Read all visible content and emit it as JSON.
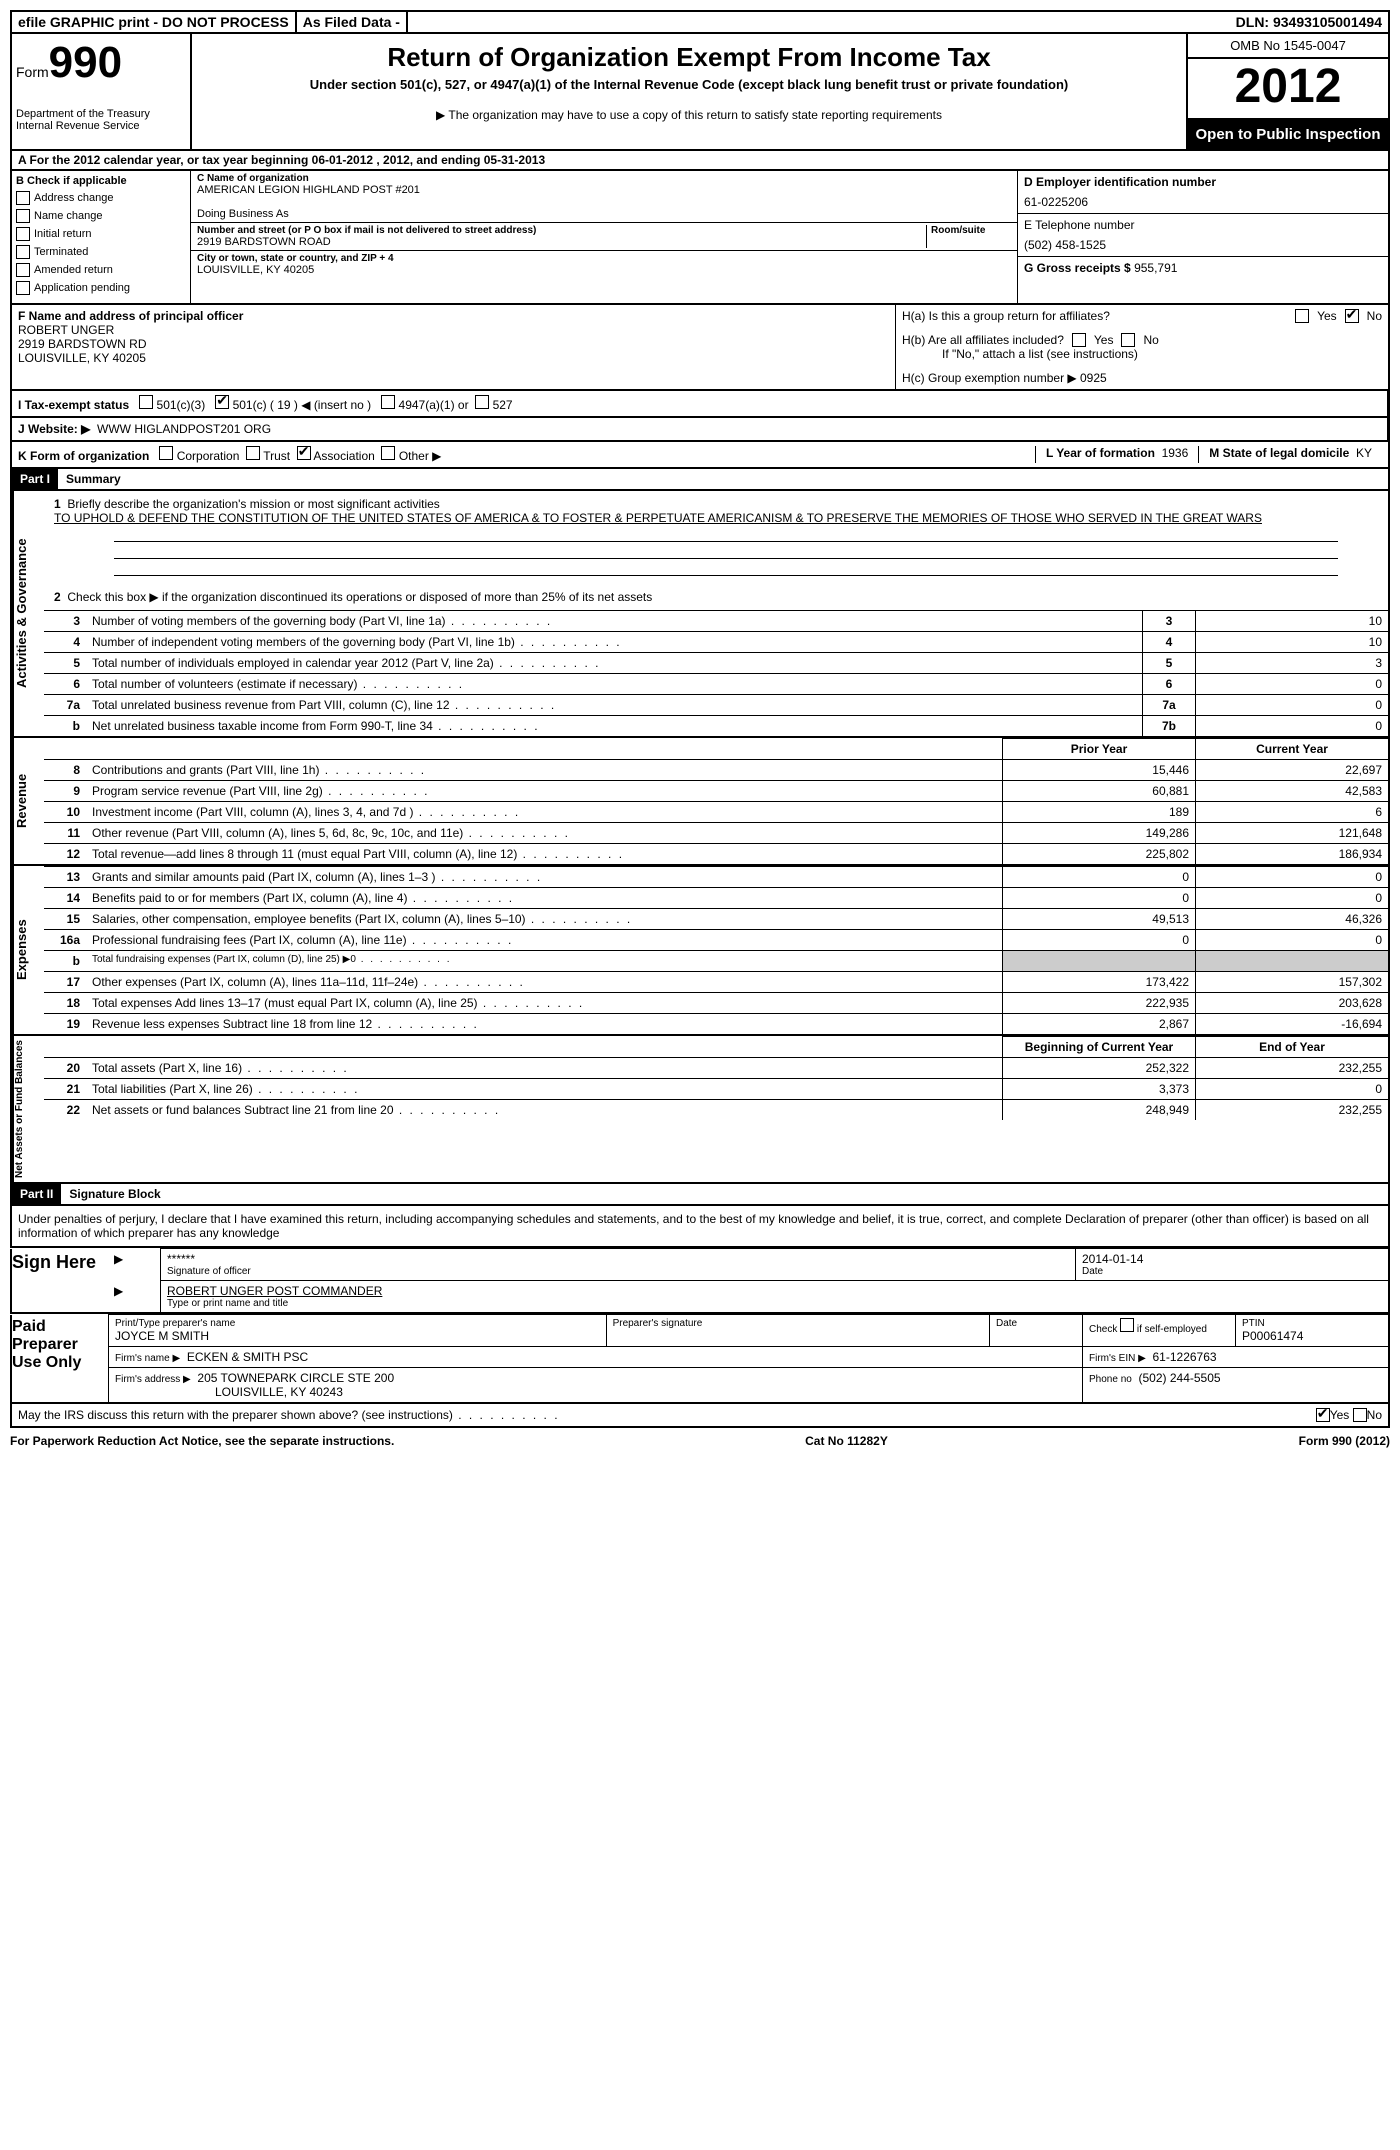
{
  "top_bar": {
    "efile": "efile GRAPHIC print - DO NOT PROCESS",
    "as_filed": "As Filed Data -",
    "dln": "DLN: 93493105001494"
  },
  "header": {
    "form_label": "Form",
    "form_number": "990",
    "dept": "Department of the Treasury",
    "irs": "Internal Revenue Service",
    "title": "Return of Organization Exempt From Income Tax",
    "subtitle": "Under section 501(c), 527, or 4947(a)(1) of the Internal Revenue Code (except black lung benefit trust or private foundation)",
    "note": "The organization may have to use a copy of this return to satisfy state reporting requirements",
    "omb": "OMB No 1545-0047",
    "year": "2012",
    "open": "Open to Public Inspection"
  },
  "row_a": "A For the 2012 calendar year, or tax year beginning 06-01-2012    , 2012, and ending 05-31-2013",
  "section_b": {
    "header": "B Check if applicable",
    "items": [
      "Address change",
      "Name change",
      "Initial return",
      "Terminated",
      "Amended return",
      "Application pending"
    ]
  },
  "section_c": {
    "name_label": "C Name of organization",
    "name": "AMERICAN LEGION HIGHLAND POST #201",
    "dba_label": "Doing Business As",
    "dba": "",
    "street_label": "Number and street (or P O  box if mail is not delivered to street address)",
    "room_label": "Room/suite",
    "street": "2919 BARDSTOWN ROAD",
    "city_label": "City or town, state or country, and ZIP + 4",
    "city": "LOUISVILLE, KY  40205"
  },
  "section_d": {
    "ein_label": "D Employer identification number",
    "ein": "61-0225206",
    "phone_label": "E Telephone number",
    "phone": "(502) 458-1525",
    "gross_label": "G Gross receipts $",
    "gross": "955,791"
  },
  "section_f": {
    "label": "F   Name and address of principal officer",
    "name": "ROBERT UNGER",
    "street": "2919 BARDSTOWN RD",
    "city": "LOUISVILLE, KY  40205"
  },
  "section_h": {
    "ha": "H(a)  Is this a group return for affiliates?",
    "hb": "H(b)  Are all affiliates included?",
    "hb_note": "If \"No,\" attach a list  (see instructions)",
    "hc": "H(c)   Group exemption number ▶",
    "hc_val": "0925"
  },
  "line_i": {
    "label": "I   Tax-exempt status",
    "opt1": "501(c)(3)",
    "opt2": "501(c) ( 19 ) ◀ (insert no )",
    "opt3": "4947(a)(1) or",
    "opt4": "527"
  },
  "line_j": {
    "label": "J  Website: ▶",
    "value": "WWW HIGLANDPOST201 ORG"
  },
  "line_k": {
    "label": "K Form of organization",
    "opts": [
      "Corporation",
      "Trust",
      "Association",
      "Other ▶"
    ],
    "l_label": "L Year of formation",
    "l_val": "1936",
    "m_label": "M State of legal domicile",
    "m_val": "KY"
  },
  "part1": {
    "header": "Part I",
    "title": "Summary",
    "q1_label": "1",
    "q1": "Briefly describe the organization's mission or most significant activities",
    "q1_text": "TO UPHOLD & DEFEND THE CONSTITUTION OF THE UNITED STATES OF AMERICA & TO FOSTER & PERPETUATE AMERICANISM & TO PRESERVE THE MEMORIES OF THOSE WHO SERVED IN THE GREAT WARS",
    "q2_label": "2",
    "q2": "Check this box ▶    if the organization discontinued its operations or disposed of more than 25% of its net assets",
    "lines_top": [
      {
        "n": "3",
        "t": "Number of voting members of the governing body (Part VI, line 1a)",
        "box": "3",
        "v": "10"
      },
      {
        "n": "4",
        "t": "Number of independent voting members of the governing body (Part VI, line 1b)",
        "box": "4",
        "v": "10"
      },
      {
        "n": "5",
        "t": "Total number of individuals employed in calendar year 2012 (Part V, line 2a)",
        "box": "5",
        "v": "3"
      },
      {
        "n": "6",
        "t": "Total number of volunteers (estimate if necessary)",
        "box": "6",
        "v": "0"
      },
      {
        "n": "7a",
        "t": "Total unrelated business revenue from Part VIII, column (C), line 12",
        "box": "7a",
        "v": "0"
      },
      {
        "n": "b",
        "t": "Net unrelated business taxable income from Form 990-T, line 34",
        "box": "7b",
        "v": "0"
      }
    ],
    "col_headers": {
      "prior": "Prior Year",
      "current": "Current Year"
    },
    "revenue": [
      {
        "n": "8",
        "t": "Contributions and grants (Part VIII, line 1h)",
        "p": "15,446",
        "c": "22,697"
      },
      {
        "n": "9",
        "t": "Program service revenue (Part VIII, line 2g)",
        "p": "60,881",
        "c": "42,583"
      },
      {
        "n": "10",
        "t": "Investment income (Part VIII, column (A), lines 3, 4, and 7d )",
        "p": "189",
        "c": "6"
      },
      {
        "n": "11",
        "t": "Other revenue (Part VIII, column (A), lines 5, 6d, 8c, 9c, 10c, and 11e)",
        "p": "149,286",
        "c": "121,648"
      },
      {
        "n": "12",
        "t": "Total revenue—add lines 8 through 11 (must equal Part VIII, column (A), line 12)",
        "p": "225,802",
        "c": "186,934"
      }
    ],
    "expenses": [
      {
        "n": "13",
        "t": "Grants and similar amounts paid (Part IX, column (A), lines 1–3 )",
        "p": "0",
        "c": "0"
      },
      {
        "n": "14",
        "t": "Benefits paid to or for members (Part IX, column (A), line 4)",
        "p": "0",
        "c": "0"
      },
      {
        "n": "15",
        "t": "Salaries, other compensation, employee benefits (Part IX, column (A), lines 5–10)",
        "p": "49,513",
        "c": "46,326"
      },
      {
        "n": "16a",
        "t": "Professional fundraising fees (Part IX, column (A), line 11e)",
        "p": "0",
        "c": "0"
      },
      {
        "n": "b",
        "t": "Total fundraising expenses (Part IX, column (D), line 25) ▶0",
        "p": "",
        "c": "",
        "shaded": true,
        "small": true
      },
      {
        "n": "17",
        "t": "Other expenses (Part IX, column (A), lines 11a–11d, 11f–24e)",
        "p": "173,422",
        "c": "157,302"
      },
      {
        "n": "18",
        "t": "Total expenses  Add lines 13–17 (must equal Part IX, column (A), line 25)",
        "p": "222,935",
        "c": "203,628"
      },
      {
        "n": "19",
        "t": "Revenue less expenses  Subtract line 18 from line 12",
        "p": "2,867",
        "c": "-16,694"
      }
    ],
    "balance_headers": {
      "begin": "Beginning of Current Year",
      "end": "End of Year"
    },
    "balances": [
      {
        "n": "20",
        "t": "Total assets (Part X, line 16)",
        "p": "252,322",
        "c": "232,255"
      },
      {
        "n": "21",
        "t": "Total liabilities (Part X, line 26)",
        "p": "3,373",
        "c": "0"
      },
      {
        "n": "22",
        "t": "Net assets or fund balances  Subtract line 21 from line 20",
        "p": "248,949",
        "c": "232,255"
      }
    ],
    "side_labels": {
      "gov": "Activities & Governance",
      "rev": "Revenue",
      "exp": "Expenses",
      "net": "Net Assets or Fund Balances"
    }
  },
  "part2": {
    "header": "Part II",
    "title": "Signature Block",
    "perjury": "Under penalties of perjury, I declare that I have examined this return, including accompanying schedules and statements, and to the best of my knowledge and belief, it is true, correct, and complete  Declaration of preparer (other than officer) is based on all information of which preparer has any knowledge",
    "sign_here": "Sign Here",
    "sig_stars": "******",
    "sig_date": "2014-01-14",
    "sig_officer_label": "Signature of officer",
    "date_label": "Date",
    "officer_name": "ROBERT UNGER POST COMMANDER",
    "officer_type_label": "Type or print name and title",
    "paid": "Paid Preparer Use Only",
    "prep_name_label": "Print/Type preparer's name",
    "prep_name": "JOYCE M SMITH",
    "prep_sig_label": "Preparer's signature",
    "prep_date_label": "Date",
    "self_emp": "Check        if self-employed",
    "ptin_label": "PTIN",
    "ptin": "P00061474",
    "firm_name_label": "Firm's name    ▶",
    "firm_name": "ECKEN & SMITH PSC",
    "firm_ein_label": "Firm's EIN ▶",
    "firm_ein": "61-1226763",
    "firm_addr_label": "Firm's address ▶",
    "firm_addr1": "205 TOWNEPARK CIRCLE STE 200",
    "firm_addr2": "LOUISVILLE, KY  40243",
    "firm_phone_label": "Phone no",
    "firm_phone": "(502) 244-5505",
    "may_irs": "May the IRS discuss this return with the preparer shown above? (see instructions)"
  },
  "footer": {
    "left": "For Paperwork Reduction Act Notice, see the separate instructions.",
    "center": "Cat No  11282Y",
    "right": "Form 990 (2012)"
  }
}
